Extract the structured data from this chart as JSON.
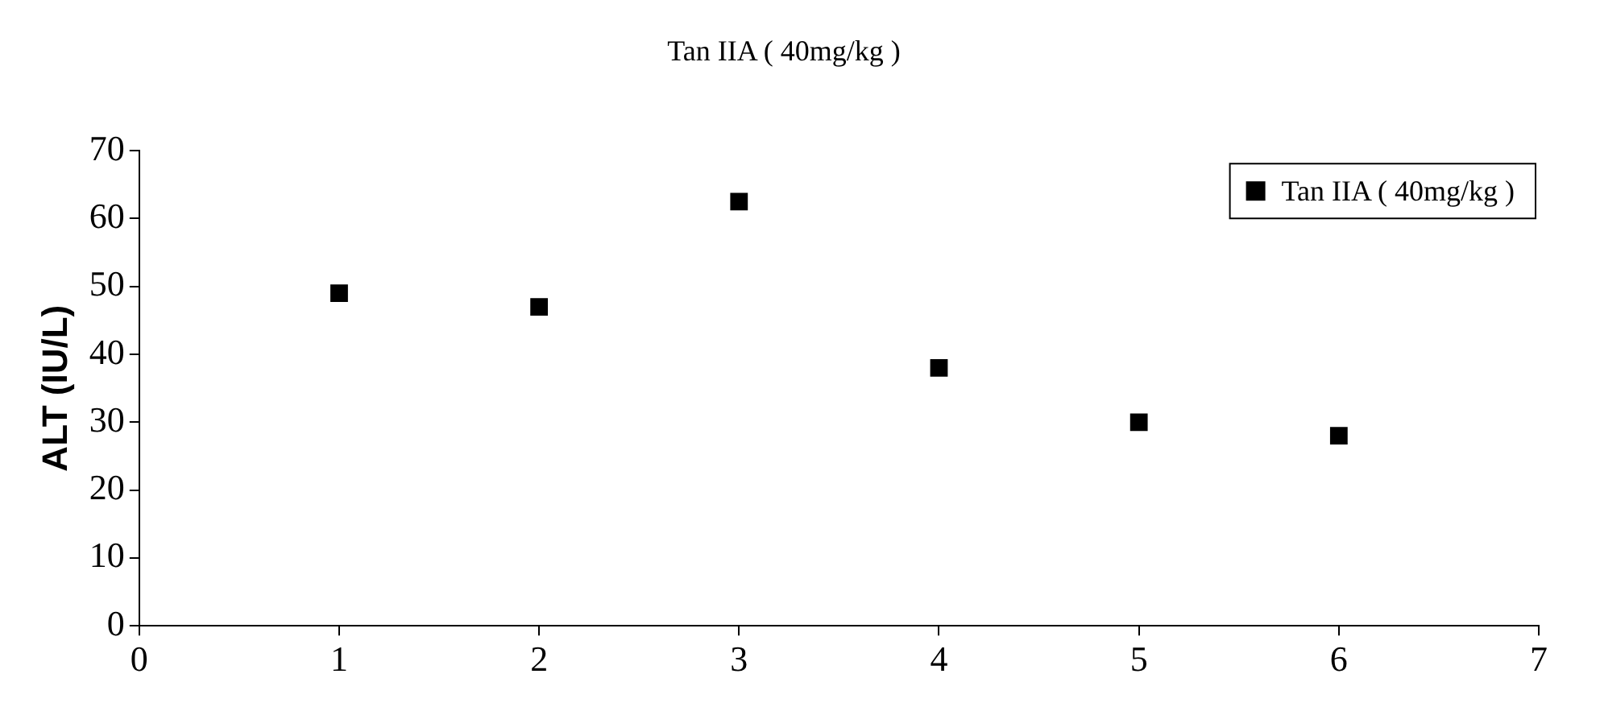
{
  "chart_data": {
    "type": "scatter",
    "title": "Tan IIA ( 40mg/kg )",
    "ylabel": "ALT (IU/L)",
    "x": [
      1,
      2,
      3,
      4,
      5,
      6
    ],
    "series": [
      {
        "name": "Tan IIA ( 40mg/kg )",
        "color": "#000000",
        "values": [
          49,
          47,
          62.5,
          38,
          30,
          28
        ]
      }
    ],
    "xlim": [
      0,
      7
    ],
    "xticks": [
      0,
      1,
      2,
      3,
      4,
      5,
      6,
      7
    ],
    "ylim": [
      0,
      70
    ],
    "yticks": [
      0,
      10,
      20,
      30,
      40,
      50,
      60,
      70
    ],
    "grid": false,
    "legend": "top right",
    "marker": "square"
  }
}
